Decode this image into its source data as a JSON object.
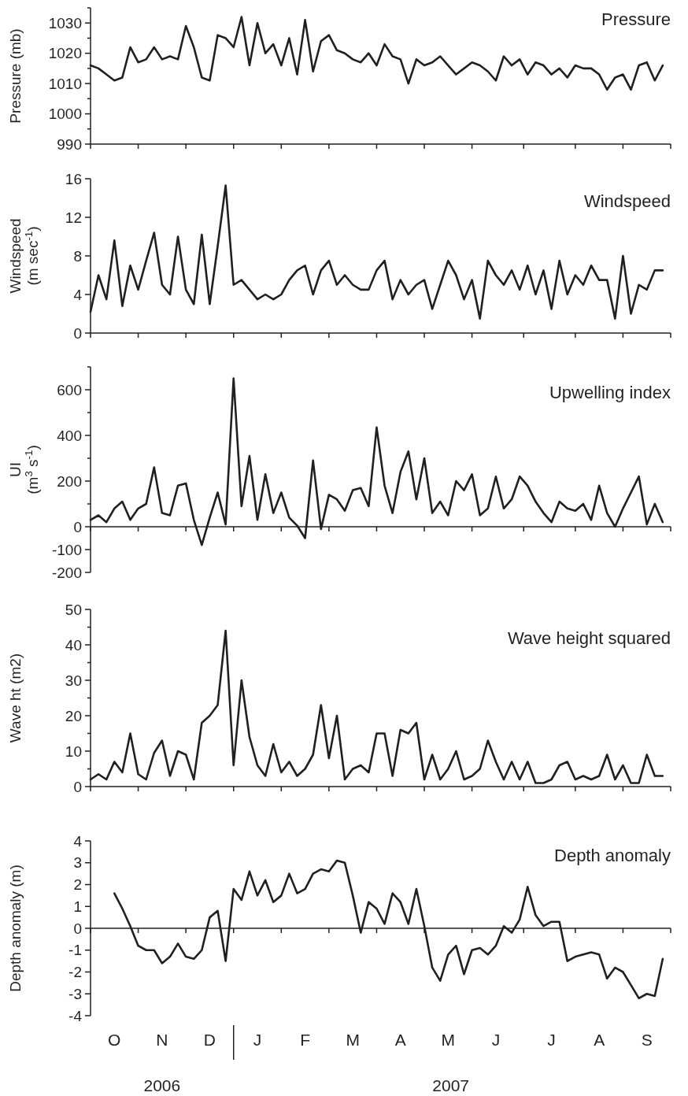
{
  "chart_data": [
    {
      "type": "line",
      "title": "Pressure",
      "ylabel": "Pressure (mb)",
      "ylim": [
        990,
        1035
      ],
      "tick_labels": "y",
      "yticks": [
        990,
        {
          "value": 995,
          "label": null
        },
        1000,
        {
          "value": 1005,
          "label": null
        },
        1010,
        {
          "value": 1015,
          "label": null
        },
        1020,
        {
          "value": 1025,
          "label": null
        },
        1030,
        {
          "value": 1035,
          "label": null
        }
      ],
      "categories": [
        null,
        null,
        null,
        null,
        null,
        null,
        null,
        null,
        null,
        null,
        null,
        null,
        null,
        null,
        null,
        null,
        null,
        null,
        null,
        null,
        null,
        null,
        null,
        null,
        null,
        null,
        null,
        null,
        null,
        null,
        null,
        null,
        null,
        null,
        null,
        null,
        null,
        null,
        null,
        null,
        null,
        null,
        null,
        null,
        null,
        null,
        null,
        null,
        null,
        null,
        null,
        null,
        null,
        null,
        null,
        null,
        null,
        null,
        null,
        null,
        null,
        null,
        null,
        null,
        null,
        null,
        null,
        null,
        null,
        null,
        null,
        null,
        null
      ],
      "series": [
        {
          "color": "#231f20",
          "values": [
            1016,
            1015,
            1013,
            1011,
            1012,
            1022,
            1017,
            1018,
            1022,
            1018,
            1019,
            1018,
            1029,
            1022,
            1012,
            1011,
            1026,
            1025,
            1022,
            1032,
            1016,
            1030,
            1020,
            1023,
            1016,
            1025,
            1013,
            1031,
            1014,
            1024,
            1026,
            1021,
            1020,
            1018,
            1017,
            1020,
            1016,
            1023,
            1019,
            1018,
            1010,
            1018,
            1016,
            1017,
            1019,
            1016,
            1013,
            1015,
            1017,
            1016,
            1014,
            1011,
            1019,
            1016,
            1018,
            1013,
            1017,
            1016,
            1013,
            1015,
            1012,
            1016,
            1015,
            1015,
            1013,
            1008,
            1012,
            1013,
            1008,
            1016,
            1017,
            1011,
            1016
          ]
        }
      ]
    },
    {
      "type": "line",
      "title": "Windspeed",
      "ylabel": "Windspeed (m sec$^{-1}$)",
      "ylim": [
        0,
        16
      ],
      "tick_labels": "y",
      "yticks": [
        0,
        4,
        8,
        12,
        16
      ],
      "categories": [
        null,
        null,
        null,
        null,
        null,
        null,
        null,
        null,
        null,
        null,
        null,
        null,
        null,
        null,
        null,
        null,
        null,
        null,
        null,
        null,
        null,
        null,
        null,
        null,
        null,
        null,
        null,
        null,
        null,
        null,
        null,
        null,
        null,
        null,
        null,
        null,
        null,
        null,
        null,
        null,
        null,
        null,
        null,
        null,
        null,
        null,
        null,
        null,
        null,
        null,
        null,
        null,
        null,
        null,
        null,
        null,
        null,
        null,
        null,
        null,
        null,
        null,
        null,
        null,
        null,
        null,
        null,
        null,
        null,
        null,
        null,
        null,
        null
      ],
      "series": [
        {
          "color": "#231f20",
          "values": [
            2.2,
            6,
            3.5,
            9.6,
            2.8,
            7,
            4.5,
            7.5,
            10.4,
            5,
            4,
            10,
            4.5,
            3,
            10.2,
            3,
            9,
            15.3,
            5,
            5.5,
            4.5,
            3.5,
            4,
            3.5,
            4,
            5.5,
            6.5,
            7,
            4,
            6.5,
            7.5,
            5,
            6,
            5,
            4.5,
            4.5,
            6.5,
            7.5,
            3.5,
            5.5,
            4,
            5,
            5.5,
            2.5,
            5,
            7.5,
            6,
            3.5,
            5.5,
            1.5,
            7.5,
            6,
            5,
            6.5,
            4.5,
            7,
            4,
            6.5,
            2.5,
            7.5,
            4,
            6,
            5,
            7,
            5.5,
            5.5,
            1.5,
            8,
            2,
            5,
            4.5,
            6.5,
            6.5
          ]
        }
      ]
    },
    {
      "type": "line",
      "title": "Upwelling index",
      "ylabel": "UI (m$^{3}$ s$^{-1}$)",
      "ylim": [
        -200,
        700
      ],
      "tick_labels": "y",
      "yticks": [
        -200,
        -100,
        0,
        {
          "value": 100,
          "label": null
        },
        200,
        {
          "value": 300,
          "label": null
        },
        400,
        {
          "value": 500,
          "label": null
        },
        600,
        {
          "value": 700,
          "label": null
        }
      ],
      "ref_lines": [
        {
          "axis": "y",
          "value": 0
        }
      ],
      "categories": [
        null,
        null,
        null,
        null,
        null,
        null,
        null,
        null,
        null,
        null,
        null,
        null,
        null,
        null,
        null,
        null,
        null,
        null,
        null,
        null,
        null,
        null,
        null,
        null,
        null,
        null,
        null,
        null,
        null,
        null,
        null,
        null,
        null,
        null,
        null,
        null,
        null,
        null,
        null,
        null,
        null,
        null,
        null,
        null,
        null,
        null,
        null,
        null,
        null,
        null,
        null,
        null,
        null,
        null,
        null,
        null,
        null,
        null,
        null,
        null,
        null,
        null,
        null,
        null,
        null,
        null,
        null,
        null,
        null,
        null,
        null,
        null,
        null
      ],
      "series": [
        {
          "color": "#231f20",
          "values": [
            30,
            50,
            20,
            80,
            110,
            30,
            80,
            100,
            260,
            60,
            50,
            180,
            190,
            30,
            -80,
            40,
            150,
            10,
            650,
            90,
            310,
            30,
            230,
            60,
            150,
            40,
            5,
            -50,
            290,
            -10,
            140,
            120,
            70,
            160,
            170,
            90,
            435,
            180,
            60,
            240,
            330,
            120,
            300,
            60,
            110,
            50,
            200,
            160,
            230,
            50,
            80,
            220,
            80,
            120,
            220,
            180,
            110,
            60,
            20,
            110,
            80,
            70,
            100,
            30,
            180,
            60,
            0,
            80,
            150,
            220,
            10,
            100,
            20
          ]
        }
      ]
    },
    {
      "type": "line",
      "title": "Wave height squared",
      "ylabel": "Wave ht (m2)",
      "ylim": [
        0,
        50
      ],
      "tick_labels": "y",
      "yticks": [
        0,
        {
          "value": 5,
          "label": null
        },
        10,
        {
          "value": 15,
          "label": null
        },
        20,
        {
          "value": 25,
          "label": null
        },
        30,
        {
          "value": 35,
          "label": null
        },
        40,
        {
          "value": 45,
          "label": null
        },
        50
      ],
      "categories": [
        null,
        null,
        null,
        null,
        null,
        null,
        null,
        null,
        null,
        null,
        null,
        null,
        null,
        null,
        null,
        null,
        null,
        null,
        null,
        null,
        null,
        null,
        null,
        null,
        null,
        null,
        null,
        null,
        null,
        null,
        null,
        null,
        null,
        null,
        null,
        null,
        null,
        null,
        null,
        null,
        null,
        null,
        null,
        null,
        null,
        null,
        null,
        null,
        null,
        null,
        null,
        null,
        null,
        null,
        null,
        null,
        null,
        null,
        null,
        null,
        null,
        null,
        null,
        null,
        null,
        null,
        null,
        null,
        null,
        null,
        null,
        null,
        null
      ],
      "series": [
        {
          "color": "#231f20",
          "values": [
            2,
            3.5,
            2,
            7,
            4,
            15,
            3.5,
            2,
            9.5,
            13,
            3,
            10,
            9,
            2,
            18,
            20,
            23,
            44,
            6,
            30,
            14,
            6,
            3,
            12,
            4,
            7,
            3,
            5,
            9,
            23,
            8,
            20,
            2,
            5,
            6,
            4,
            15,
            15,
            3,
            16,
            15,
            18,
            2,
            9,
            2,
            5,
            10,
            2,
            3,
            5,
            13,
            7,
            2,
            7,
            2,
            7,
            1,
            1,
            2,
            6,
            7,
            2,
            3,
            2,
            3,
            9,
            2,
            6,
            1,
            1,
            9,
            3,
            3
          ]
        }
      ]
    },
    {
      "type": "line",
      "title": "Depth anomaly",
      "ylabel": "Depth anomaly (m)",
      "ylim": [
        -4,
        4
      ],
      "yticks": [
        -4,
        -3,
        -2,
        -1,
        0,
        1,
        2,
        3,
        4
      ],
      "ref_lines": [
        {
          "axis": "y",
          "value": 0
        }
      ],
      "annotations": [
        "2006",
        "2007"
      ],
      "categories": [
        null,
        null,
        null,
        "O",
        null,
        null,
        null,
        null,
        null,
        "N",
        null,
        null,
        null,
        null,
        null,
        "D",
        null,
        null,
        null,
        null,
        null,
        "J",
        null,
        null,
        null,
        null,
        null,
        "F",
        null,
        null,
        null,
        null,
        null,
        "M",
        null,
        null,
        null,
        null,
        null,
        "A",
        null,
        null,
        null,
        null,
        null,
        "M",
        null,
        null,
        null,
        null,
        null,
        "J",
        null,
        null,
        null,
        null,
        null,
        null,
        "J",
        null,
        null,
        null,
        null,
        null,
        "A",
        null,
        null,
        null,
        null,
        null,
        "S",
        null,
        null
      ],
      "series": [
        {
          "color": "#231f20",
          "values": [
            null,
            null,
            null,
            1.6,
            0.9,
            0.1,
            -0.8,
            -1.0,
            -1.0,
            -1.6,
            -1.3,
            -0.7,
            -1.3,
            -1.4,
            -1.0,
            0.5,
            0.8,
            -1.5,
            1.8,
            1.3,
            2.6,
            1.5,
            2.2,
            1.2,
            1.5,
            2.5,
            1.6,
            1.8,
            2.5,
            2.7,
            2.6,
            3.1,
            3.0,
            1.5,
            -0.2,
            1.2,
            0.9,
            0.2,
            1.6,
            1.2,
            0.2,
            1.8,
            0.1,
            -1.8,
            -2.4,
            -1.2,
            -0.8,
            -2.1,
            -1.0,
            -0.9,
            -1.2,
            -0.8,
            0.1,
            -0.2,
            0.4,
            1.9,
            0.6,
            0.1,
            0.3,
            0.3,
            -1.5,
            -1.3,
            -1.2,
            -1.1,
            -1.2,
            -2.3,
            -1.8,
            -2.0,
            -2.6,
            -3.2,
            -3.0,
            -3.1,
            -1.4
          ]
        }
      ]
    }
  ]
}
